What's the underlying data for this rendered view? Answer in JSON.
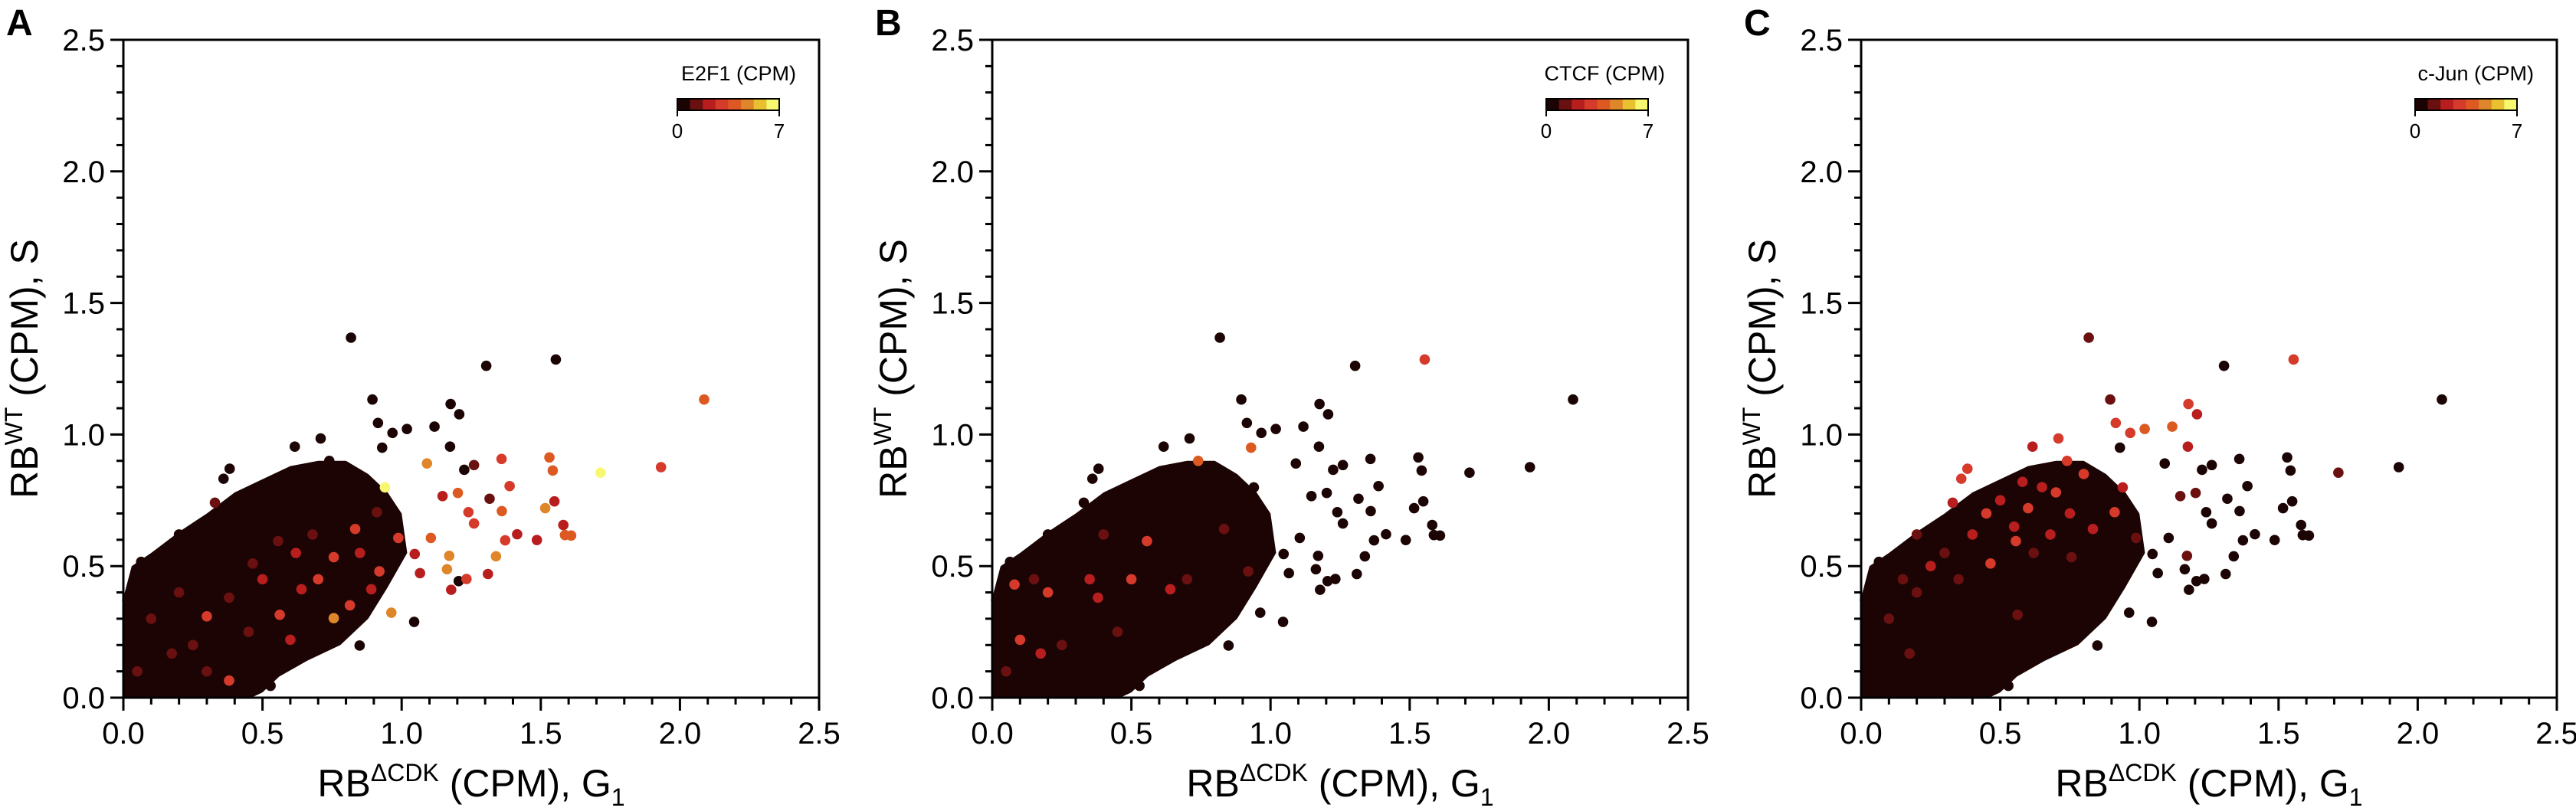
{
  "palette": [
    "#1c0404",
    "#6b1010",
    "#b81e1e",
    "#d63a2a",
    "#dc5a22",
    "#e0862a",
    "#e8c030",
    "#f8f870"
  ],
  "chart_data": [
    {
      "type": "scatter",
      "panel_label": "A",
      "colorbar": {
        "title": "E2F1 (CPM)",
        "min_label": "0",
        "max_label": "7",
        "range": [
          0,
          7
        ]
      },
      "color_index": 2
    },
    {
      "type": "scatter",
      "panel_label": "B",
      "colorbar": {
        "title": "CTCF (CPM)",
        "min_label": "0",
        "max_label": "7",
        "range": [
          0,
          7
        ]
      },
      "color_index": 3
    },
    {
      "type": "scatter",
      "panel_label": "C",
      "colorbar": {
        "title": "c-Jun (CPM)",
        "min_label": "0",
        "max_label": "7",
        "range": [
          0,
          7
        ]
      },
      "color_index": 4
    }
  ],
  "shared": {
    "xlabel": {
      "base": "RB",
      "sup": "ΔCDK",
      "rest": " (CPM), G",
      "sub": "1"
    },
    "ylabel": {
      "base": "RB",
      "sup": "WT",
      "rest": " (CPM), S"
    },
    "xlim": [
      0,
      2.5
    ],
    "ylim": [
      0,
      2.5
    ],
    "xticks": [
      "0.0",
      "0.5",
      "1.0",
      "1.5",
      "2.0",
      "2.5"
    ],
    "yticks": [
      "0.0",
      "0.5",
      "1.0",
      "1.5",
      "2.0",
      "2.5"
    ],
    "minor_step": 0.1,
    "grid": false,
    "legend": "colorbar top-right",
    "dense_region_outline": [
      [
        0,
        0
      ],
      [
        0,
        0.38
      ],
      [
        0.03,
        0.5
      ],
      [
        0.1,
        0.55
      ],
      [
        0.2,
        0.63
      ],
      [
        0.3,
        0.7
      ],
      [
        0.4,
        0.78
      ],
      [
        0.5,
        0.83
      ],
      [
        0.6,
        0.88
      ],
      [
        0.7,
        0.9
      ],
      [
        0.8,
        0.9
      ],
      [
        0.88,
        0.85
      ],
      [
        0.95,
        0.78
      ],
      [
        1.0,
        0.7
      ],
      [
        1.02,
        0.55
      ],
      [
        0.95,
        0.42
      ],
      [
        0.88,
        0.3
      ],
      [
        0.78,
        0.2
      ],
      [
        0.66,
        0.14
      ],
      [
        0.56,
        0.08
      ],
      [
        0.5,
        0.02
      ],
      [
        0.46,
        0
      ]
    ],
    "points_columns": [
      "x",
      "y",
      "E2F1",
      "CTCF",
      "c-Jun"
    ],
    "points": [
      [
        0.818,
        1.368,
        0,
        0,
        1
      ],
      [
        1.304,
        1.261,
        0,
        0,
        0
      ],
      [
        1.554,
        1.285,
        0,
        3,
        3
      ],
      [
        2.087,
        1.133,
        4,
        0,
        0
      ],
      [
        0.895,
        1.133,
        0,
        0,
        1
      ],
      [
        1.176,
        1.116,
        0,
        0,
        3
      ],
      [
        1.207,
        1.077,
        0,
        0,
        2
      ],
      [
        0.915,
        1.044,
        0,
        0,
        3
      ],
      [
        1.019,
        1.021,
        0,
        0,
        4
      ],
      [
        0.967,
        1.006,
        0,
        0,
        3
      ],
      [
        1.118,
        1.03,
        0,
        0,
        4
      ],
      [
        0.709,
        0.985,
        0,
        0,
        3
      ],
      [
        0.616,
        0.954,
        0,
        0,
        2
      ],
      [
        1.174,
        0.954,
        0,
        0,
        2
      ],
      [
        1.359,
        0.907,
        3,
        0,
        0
      ],
      [
        1.531,
        0.913,
        4,
        0,
        0
      ],
      [
        1.543,
        0.863,
        4,
        0,
        0
      ],
      [
        1.932,
        0.876,
        3,
        0,
        0
      ],
      [
        1.715,
        0.855,
        7,
        0,
        1
      ],
      [
        0.94,
        0.799,
        7,
        0,
        2
      ],
      [
        0.93,
        0.95,
        0,
        4,
        0
      ],
      [
        0.74,
        0.9,
        0,
        4,
        3
      ],
      [
        1.225,
        0.866,
        0,
        0,
        0
      ],
      [
        1.26,
        0.884,
        1,
        0,
        0
      ],
      [
        1.091,
        0.89,
        5,
        0,
        0
      ],
      [
        1.388,
        0.804,
        3,
        0,
        0
      ],
      [
        1.316,
        0.756,
        1,
        0,
        0
      ],
      [
        1.549,
        0.746,
        2,
        0,
        0
      ],
      [
        1.516,
        0.72,
        5,
        0,
        0
      ],
      [
        1.36,
        0.709,
        4,
        0,
        0
      ],
      [
        1.581,
        0.656,
        2,
        0,
        0
      ],
      [
        1.587,
        0.618,
        4,
        0,
        0
      ],
      [
        1.609,
        0.616,
        4,
        0,
        0
      ],
      [
        1.486,
        0.599,
        2,
        0,
        0
      ],
      [
        1.415,
        0.621,
        2,
        0,
        0
      ],
      [
        1.372,
        0.598,
        3,
        0,
        0
      ],
      [
        1.205,
        0.443,
        0,
        0,
        0
      ],
      [
        1.31,
        0.47,
        2,
        0,
        0
      ],
      [
        1.233,
        0.451,
        3,
        0,
        0
      ],
      [
        1.178,
        0.41,
        2,
        0,
        0
      ],
      [
        1.045,
        0.288,
        0,
        0,
        0
      ],
      [
        0.963,
        0.323,
        5,
        0,
        0
      ],
      [
        0.849,
        0.198,
        0,
        0,
        0
      ],
      [
        0.529,
        0.045,
        0,
        0,
        0
      ],
      [
        0.382,
        0.87,
        0,
        0,
        3
      ],
      [
        0.36,
        0.832,
        0,
        0,
        3
      ],
      [
        0.329,
        0.741,
        1,
        0,
        2
      ],
      [
        0.014,
        0.371,
        0,
        0,
        0
      ],
      [
        0.064,
        0.516,
        0,
        0,
        0
      ],
      [
        1.171,
        0.539,
        5,
        0,
        1
      ],
      [
        1.163,
        0.488,
        5,
        0,
        0
      ],
      [
        1.339,
        0.537,
        5,
        0,
        0
      ],
      [
        1.26,
        0.662,
        3,
        0,
        0
      ],
      [
        1.24,
        0.705,
        3,
        0,
        0
      ],
      [
        1.202,
        0.778,
        4,
        0,
        1
      ],
      [
        1.147,
        0.766,
        2,
        0,
        1
      ],
      [
        1.105,
        0.607,
        4,
        0,
        0
      ],
      [
        0.988,
        0.607,
        3,
        0,
        1
      ],
      [
        1.047,
        0.546,
        2,
        0,
        0
      ],
      [
        1.066,
        0.473,
        2,
        0,
        0
      ],
      [
        0.911,
        0.705,
        1,
        0,
        3
      ],
      [
        0.833,
        0.641,
        3,
        1,
        2
      ],
      [
        0.756,
        0.534,
        3,
        0,
        1
      ],
      [
        0.891,
        0.412,
        2,
        0,
        0
      ],
      [
        0.814,
        0.351,
        3,
        0,
        0
      ],
      [
        0.756,
        0.302,
        5,
        0,
        0
      ],
      [
        0.64,
        0.412,
        2,
        2,
        0
      ],
      [
        0.562,
        0.315,
        3,
        0,
        1
      ],
      [
        0.3,
        0.309,
        3,
        0,
        0
      ],
      [
        0.38,
        0.065,
        3,
        0,
        0
      ],
      [
        0.174,
        0.168,
        1,
        2,
        1
      ],
      [
        0.465,
        0.51,
        1,
        0,
        3
      ],
      [
        0.556,
        0.595,
        1,
        3,
        3
      ],
      [
        0.45,
        0.7,
        0,
        0,
        3
      ],
      [
        0.5,
        0.75,
        0,
        0,
        2
      ],
      [
        0.6,
        0.72,
        0,
        0,
        3
      ],
      [
        0.65,
        0.8,
        0,
        0,
        2
      ],
      [
        0.7,
        0.78,
        0,
        0,
        3
      ],
      [
        0.55,
        0.65,
        0,
        0,
        2
      ],
      [
        0.4,
        0.62,
        0,
        1,
        2
      ],
      [
        0.3,
        0.55,
        0,
        0,
        1
      ],
      [
        0.25,
        0.5,
        0,
        0,
        2
      ],
      [
        0.35,
        0.45,
        0,
        2,
        1
      ],
      [
        0.75,
        0.7,
        0,
        0,
        2
      ],
      [
        0.8,
        0.85,
        0,
        0,
        3
      ],
      [
        0.2,
        0.62,
        0,
        0,
        1
      ],
      [
        0.15,
        0.45,
        0,
        1,
        1
      ],
      [
        0.1,
        0.3,
        1,
        0,
        1
      ],
      [
        0.25,
        0.2,
        1,
        1,
        0
      ],
      [
        0.05,
        0.1,
        1,
        1,
        0
      ],
      [
        0.3,
        0.1,
        1,
        0,
        0
      ],
      [
        0.45,
        0.25,
        1,
        1,
        0
      ],
      [
        0.6,
        0.22,
        2,
        0,
        0
      ],
      [
        0.7,
        0.45,
        3,
        1,
        0
      ],
      [
        0.2,
        0.4,
        1,
        3,
        1
      ],
      [
        0.1,
        0.22,
        0,
        3,
        0
      ],
      [
        0.5,
        0.45,
        2,
        3,
        0
      ],
      [
        0.62,
        0.55,
        2,
        0,
        1
      ],
      [
        0.38,
        0.38,
        1,
        2,
        0
      ],
      [
        0.08,
        0.43,
        0,
        3,
        0
      ],
      [
        0.85,
        0.55,
        2,
        0,
        0
      ],
      [
        0.92,
        0.48,
        3,
        1,
        0
      ],
      [
        0.68,
        0.62,
        1,
        0,
        2
      ],
      [
        0.58,
        0.82,
        0,
        0,
        2
      ]
    ]
  }
}
